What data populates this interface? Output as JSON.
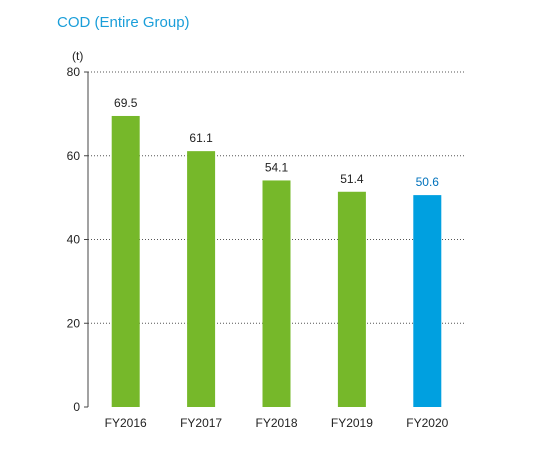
{
  "chart_data": {
    "type": "bar",
    "title": "COD (Entire Group)",
    "ylabel": "(t)",
    "xlabel": "",
    "categories": [
      "FY2016",
      "FY2017",
      "FY2018",
      "FY2019",
      "FY2020"
    ],
    "values": [
      69.5,
      61.1,
      54.1,
      51.4,
      50.6
    ],
    "value_labels": [
      "69.5",
      "61.1",
      "54.1",
      "51.4",
      "50.6"
    ],
    "ylim": [
      0,
      80
    ],
    "yticks": [
      0,
      20,
      40,
      60,
      80
    ],
    "ytick_labels": [
      "0",
      "20",
      "40",
      "60",
      "80"
    ],
    "grid": true,
    "legend": "none",
    "colors": {
      "default_bar": "#76b82a",
      "highlight_bar": "#00a0e0",
      "highlight_label": "#0072bc",
      "title": "#1a9ed9",
      "axis": "#444444",
      "grid": "#555555",
      "text": "#222222"
    },
    "highlight_index": 4
  }
}
